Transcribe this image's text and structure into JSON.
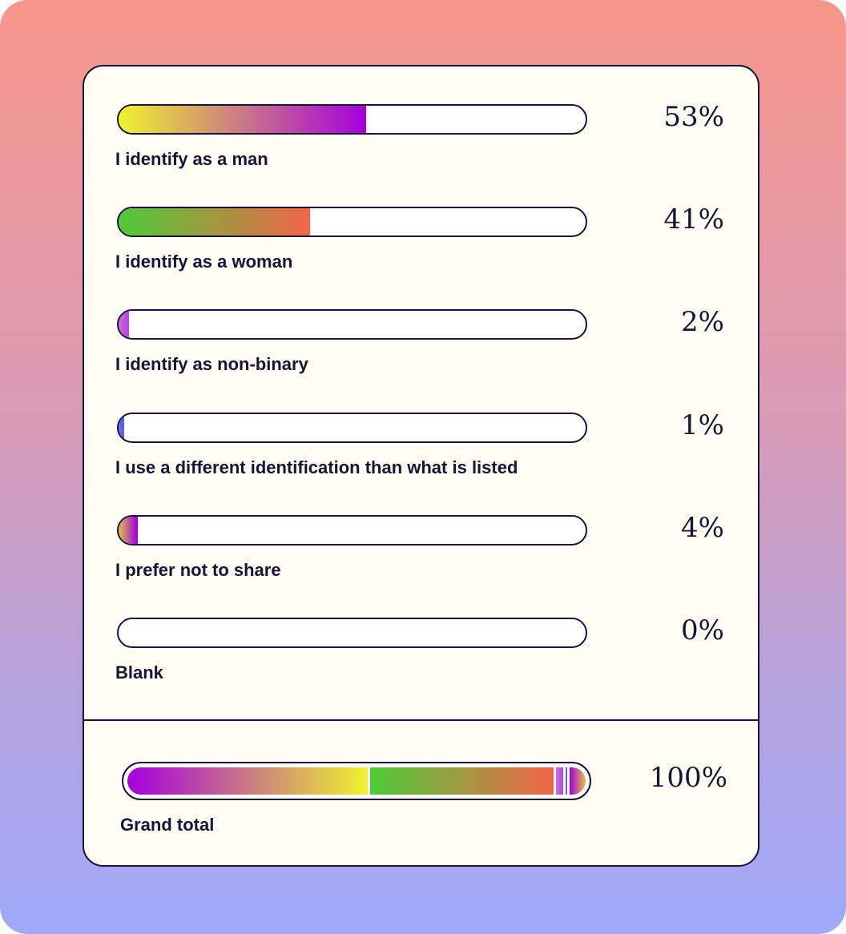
{
  "chart_data": {
    "type": "bar",
    "orientation": "horizontal",
    "categories": [
      "I identify as a man",
      "I identify as a woman",
      "I identify as non-binary",
      "I use a different identification than what is listed",
      "I prefer not to share",
      "Blank"
    ],
    "values": [
      53,
      41,
      2,
      1,
      4,
      0
    ],
    "value_labels": [
      "53%",
      "41%",
      "2%",
      "1%",
      "4%",
      "0%"
    ],
    "unit": "%",
    "xlim": [
      0,
      100
    ],
    "bar_gradients": [
      [
        "#f0f22e",
        "#a400dc"
      ],
      [
        "#4ecb38",
        "#f2644a"
      ],
      [
        "#d26ae0",
        "#b24ad8"
      ],
      [
        "#6b6cf0",
        "#5b5ce8"
      ],
      [
        "#e2c24a",
        "#a400dc"
      ],
      [
        "#ffffff",
        "#ffffff"
      ]
    ],
    "total": {
      "label": "Grand total",
      "value_label": "100%",
      "segments": [
        {
          "value": 53,
          "gradient": [
            "#a400dc",
            "#f0f22e"
          ]
        },
        {
          "value": 41,
          "gradient": [
            "#4ecb38",
            "#f2644a"
          ]
        },
        {
          "value": 2,
          "gradient": [
            "#d26ae0",
            "#b24ad8"
          ]
        },
        {
          "value": 1,
          "gradient": [
            "#6b6cf0",
            "#5b5ce8"
          ]
        },
        {
          "value": 4,
          "gradient": [
            "#a400dc",
            "#e2c24a"
          ]
        }
      ]
    }
  },
  "colors": {
    "ink": "#161438",
    "card_background": "#fffdf4",
    "page_gradient": [
      "#f7968a",
      "#a0a9fa"
    ]
  }
}
